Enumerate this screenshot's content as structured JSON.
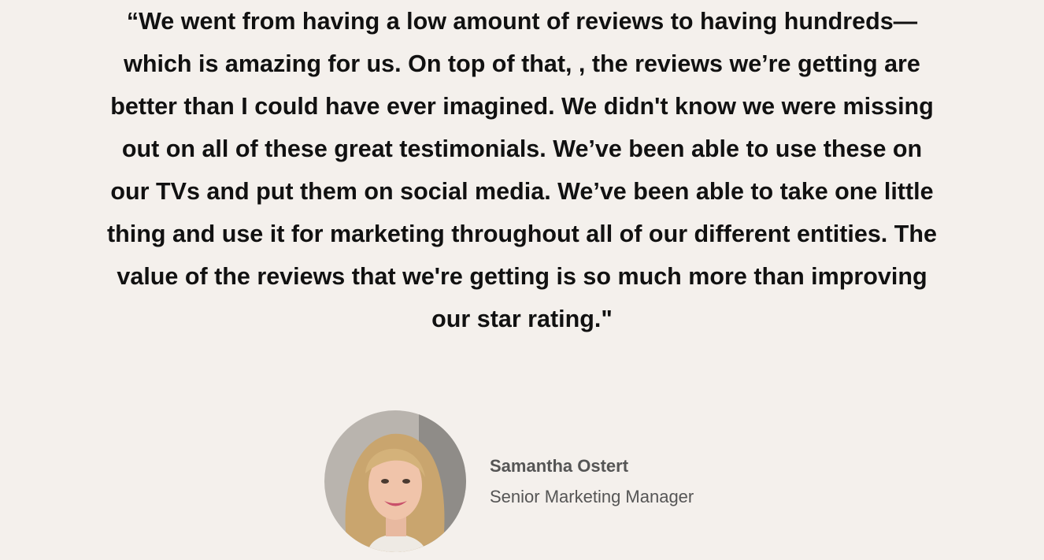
{
  "testimonial": {
    "quote_lines": [
      "“We went from having a low amount of reviews to having hundreds—",
      "which is amazing for us. On top of that, , the reviews we’re getting are",
      "better than I could have ever imagined. We didn't know we were missing",
      "out on all of these great testimonials. We’ve been able to use these on",
      "our TVs and put them on social media. We’ve been able to take one little",
      "thing and use it for marketing throughout all of our different entities. The",
      "value of the reviews that we're getting is so much more than improving",
      "our star rating.\""
    ],
    "author": {
      "name": "Samantha Ostert",
      "role": "Senior Marketing Manager"
    }
  }
}
